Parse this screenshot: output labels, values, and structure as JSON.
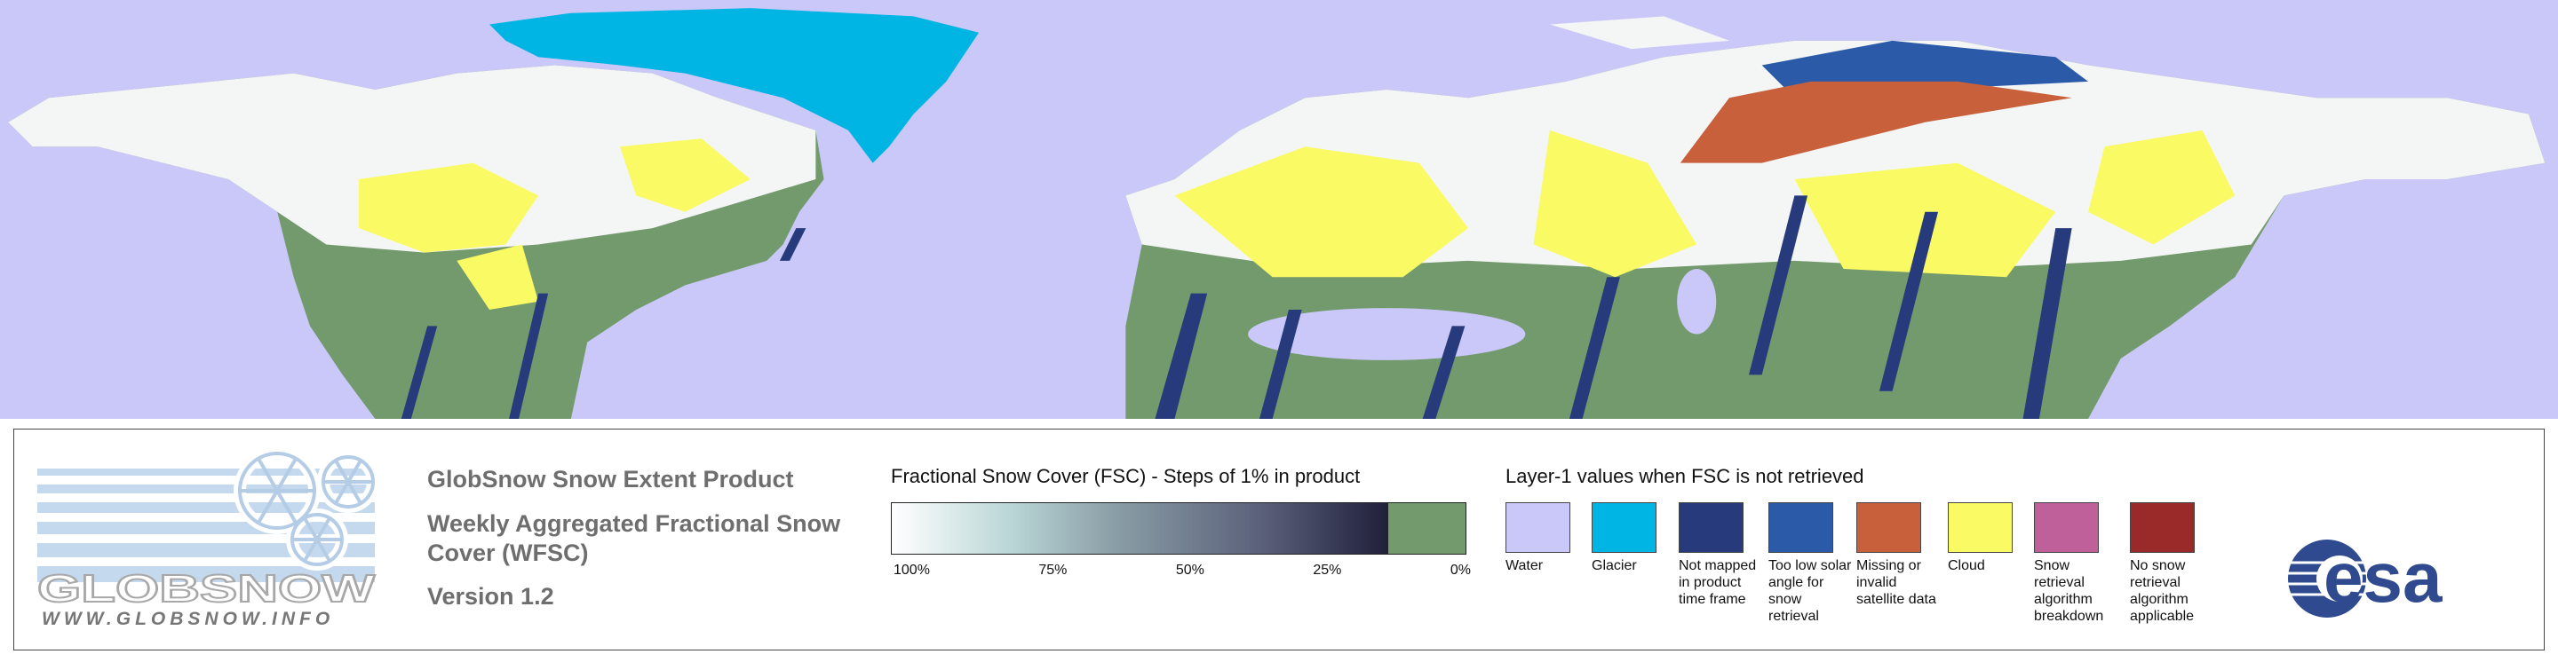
{
  "logo": {
    "name": "GLOBSNOW",
    "url": "WWW.GLOBSNOW.INFO"
  },
  "header": {
    "title": "GlobSnow Snow Extent Product",
    "subtitle": "Weekly Aggregated Fractional Snow Cover (WFSC)",
    "version": "Version 1.2"
  },
  "fsc_legend": {
    "title": "Fractional Snow Cover (FSC) - Steps of 1% in product",
    "ticks": [
      "100%",
      "75%",
      "50%",
      "25%",
      "0%"
    ]
  },
  "layer1_legend": {
    "title": "Layer-1 values when FSC is not retrieved",
    "items": [
      {
        "label": "Water",
        "color": "#c9c8f8"
      },
      {
        "label": "Glacier",
        "color": "#00b4e4"
      },
      {
        "label": "Not mapped in product time frame",
        "color": "#273a7c"
      },
      {
        "label": "Too low solar angle for snow retrieval",
        "color": "#2a5aa8"
      },
      {
        "label": "Missing or invalid satellite data",
        "color": "#c8603c"
      },
      {
        "label": "Cloud",
        "color": "#fafa64"
      },
      {
        "label": "Snow retrieval algorithm breakdown",
        "color": "#c0609a"
      },
      {
        "label": "No snow retrieval algorithm applicable",
        "color": "#9a2a2a"
      }
    ]
  },
  "esa_logo": {
    "text": "esa"
  }
}
